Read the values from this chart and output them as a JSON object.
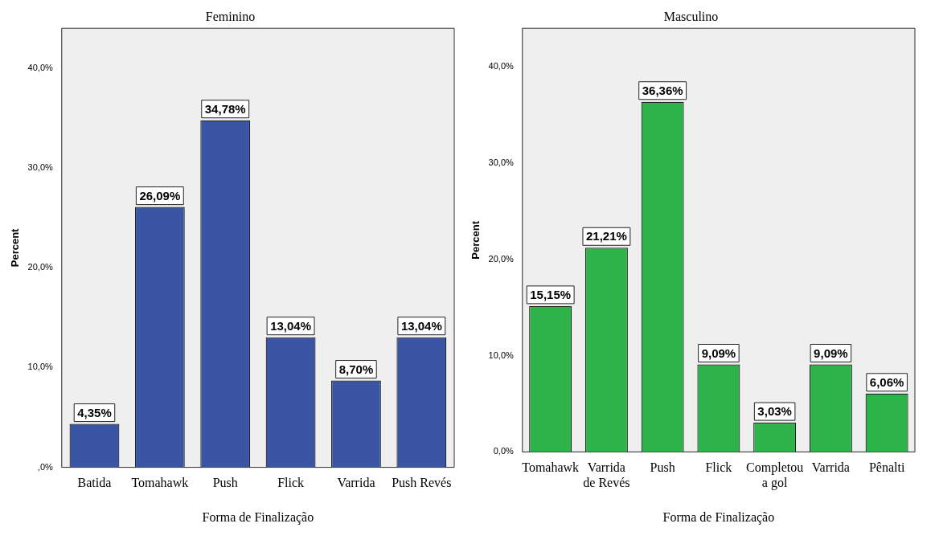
{
  "chart_data": [
    {
      "type": "bar",
      "title": "Feminino",
      "xlabel": "Forma de Finalização",
      "ylabel": "Percent",
      "categories": [
        "Batida",
        "Tomahawk",
        "Push",
        "Flick",
        "Varrida",
        "Push Revés"
      ],
      "series": [
        {
          "color": "#3b55a5",
          "values": [
            4.35,
            26.09,
            34.78,
            13.04,
            8.7,
            13.04
          ],
          "value_labels": [
            "4,35%",
            "26,09%",
            "34,78%",
            "13,04%",
            "8,70%",
            "13,04%"
          ]
        }
      ],
      "ylim": [
        0,
        44
      ],
      "yticks": [
        {
          "value": 0,
          "label": ",0%"
        },
        {
          "value": 10,
          "label": "10,0%"
        },
        {
          "value": 20,
          "label": "20,0%"
        },
        {
          "value": 30,
          "label": "30,0%"
        },
        {
          "value": 40,
          "label": "40,0%"
        }
      ],
      "grid": false,
      "legend": false
    },
    {
      "type": "bar",
      "title": "Masculino",
      "xlabel": "Forma de Finalização",
      "ylabel": "Percent",
      "categories": [
        "Tomahawk",
        "Varrida de Revés",
        "Push",
        "Flick",
        "Completou a gol",
        "Varrida",
        "Pênalti"
      ],
      "series": [
        {
          "color": "#2db34a",
          "values": [
            15.15,
            21.21,
            36.36,
            9.09,
            3.03,
            9.09,
            6.06
          ],
          "value_labels": [
            "15,15%",
            "21,21%",
            "36,36%",
            "9,09%",
            "3,03%",
            "9,09%",
            "6,06%"
          ]
        }
      ],
      "ylim": [
        0,
        44
      ],
      "yticks": [
        {
          "value": 0,
          "label": "0,0%"
        },
        {
          "value": 10,
          "label": "10,0%"
        },
        {
          "value": 20,
          "label": "20,0%"
        },
        {
          "value": 30,
          "label": "30,0%"
        },
        {
          "value": 40,
          "label": "40,0%"
        }
      ],
      "grid": false,
      "legend": false
    }
  ]
}
